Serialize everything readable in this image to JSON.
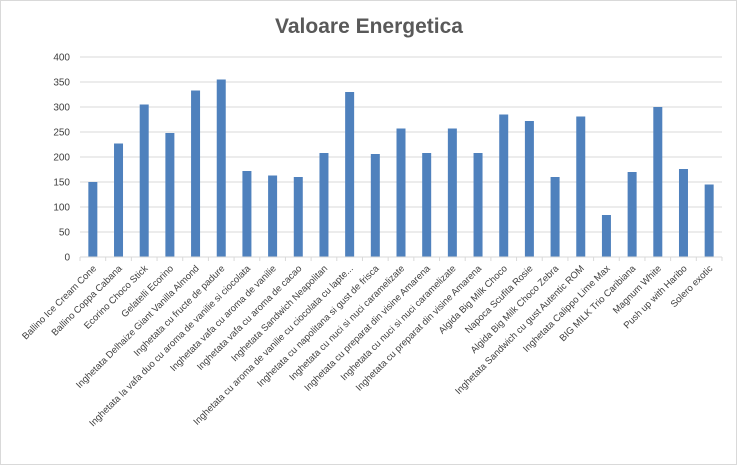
{
  "chart_data": {
    "type": "bar",
    "title": "Valoare Energetica",
    "xlabel": "",
    "ylabel": "",
    "ylim": [
      0,
      400
    ],
    "yticks": [
      0,
      50,
      100,
      150,
      200,
      250,
      300,
      350,
      400
    ],
    "grid": "horizontal",
    "legend": "none",
    "bar_color": "#4F81BD",
    "grid_color": "#D9D9D9",
    "categories": [
      "Ballino Ice Cream Cone",
      "Ballino Coppa Cabana",
      "Ecorino Choco Stick",
      "Gelatelli Ecorino",
      "Inghetata Delhaize Giant Vanilla Almond",
      "Inghetata cu fructe de padure",
      "Inghetata la vafa duo cu aroma de vanilie si ciocolata",
      "Inghetata vafa cu aroma de vanilie",
      "Inghetata vafa cu aroma de cacao",
      "Inghetata Sandwich Neapolitan",
      "Inghetata cu aroma de vanilie cu ciocolata cu lapte...",
      "Inghetata cu napolitana si gust de frisca",
      "Inghetata cu nuci si nuci caramelizate",
      "Inghetata cu preparat din visine Amarena",
      "Inghetata cu nuci si nuci caramelizate",
      "Inghetata cu preparat din visine Amarena",
      "Algida Big Milk Choco",
      "Napoca Scufita Rosie",
      "Algida Big Milk Choco Zebra",
      "Inghetata Sandwich cu gust Autentic ROM",
      "Inghetata Calippo Lime Max",
      "BIG MILK Trio Caribiana",
      "Magnum White",
      "Push up with Haribo",
      "Solero exotic"
    ],
    "values": [
      150,
      227,
      305,
      248,
      333,
      355,
      172,
      163,
      160,
      208,
      330,
      206,
      257,
      208,
      257,
      208,
      285,
      272,
      160,
      281,
      84,
      170,
      300,
      176,
      145
    ]
  }
}
